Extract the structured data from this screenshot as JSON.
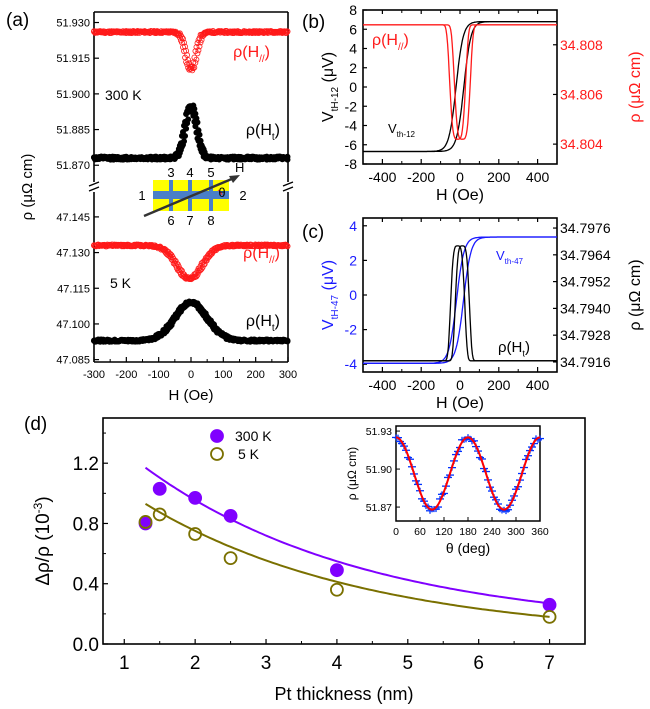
{
  "colors": {
    "black": "#000000",
    "red": "#ff1a1a",
    "blue": "#1a1aff",
    "purple": "#8000ff",
    "olive": "#7a7000",
    "inset_blue": "#0033ff",
    "inset_red": "#ff0000",
    "yellow": "#ffff00",
    "bar_blue": "#4a7fc8",
    "theta_red": "#ff3333"
  },
  "chart_data": [
    {
      "id": "a",
      "panel_label": "(a)",
      "type": "scatter",
      "xlabel": "H (Oe)",
      "ylabel": "ρ (μΩ cm)",
      "xlim": [
        -300,
        300
      ],
      "xticks": [
        -300,
        -200,
        -100,
        0,
        100,
        200,
        300
      ],
      "xtick_labels": [
        "-300",
        "-200",
        "-100",
        "0",
        "100",
        "200",
        "300"
      ],
      "broken_axis": true,
      "upper": {
        "ylim": [
          51.868,
          51.934
        ],
        "yticks": [
          51.87,
          51.885,
          51.9,
          51.915,
          51.93
        ],
        "ytick_labels": [
          "51.870",
          "51.885",
          "51.900",
          "51.915",
          "51.930"
        ],
        "temperature_label": "300 K",
        "series": [
          {
            "name": "ρ(H//)",
            "label_main": "ρ(H",
            "label_sub": "//",
            "label_end": ")",
            "marker": "open-circle",
            "color": "red",
            "baseline": 51.926,
            "extremum": 51.91,
            "center": 0,
            "width": 22
          },
          {
            "name": "ρ(Ht)",
            "label_main": "ρ(H",
            "label_sub": "t",
            "label_end": ")",
            "marker": "filled-circle",
            "color": "black",
            "baseline": 51.873,
            "extremum": 51.895,
            "center": 0,
            "width": 25
          }
        ]
      },
      "lower": {
        "ylim": [
          47.084,
          47.15
        ],
        "yticks": [
          47.085,
          47.1,
          47.115,
          47.13,
          47.145
        ],
        "ytick_labels": [
          "47.085",
          "47.100",
          "47.115",
          "47.130",
          "47.145"
        ],
        "temperature_label": "5 K",
        "series": [
          {
            "name": "ρ(H//)",
            "label_main": "ρ(H",
            "label_sub": "//",
            "label_end": ")",
            "marker": "open-circle",
            "color": "red",
            "baseline": 47.133,
            "extremum": 47.119,
            "center": -5,
            "width": 55
          },
          {
            "name": "ρ(Ht)",
            "label_main": "ρ(H",
            "label_sub": "t",
            "label_end": ")",
            "marker": "filled-circle",
            "color": "black",
            "baseline": 47.093,
            "extremum": 47.109,
            "center": 0,
            "width": 70
          }
        ]
      },
      "device_schematic": {
        "contacts_top": [
          "3",
          "4",
          "5"
        ],
        "contacts_bottom": [
          "6",
          "7",
          "8"
        ],
        "contact_left": "1",
        "contact_right": "2",
        "field_label": "H",
        "angle_label": "θ"
      }
    },
    {
      "id": "b",
      "panel_label": "(b)",
      "type": "line",
      "xlabel": "H (Oe)",
      "ylabel_main": "V",
      "ylabel_sub": "tH-12",
      "ylabel_end": " (μV)",
      "y2label": "ρ (μΩ cm)",
      "xlim": [
        -500,
        500
      ],
      "xticks": [
        -400,
        -200,
        0,
        200,
        400
      ],
      "xtick_labels": [
        "-400",
        "-200",
        "0",
        "200",
        "400"
      ],
      "ylim": [
        -8,
        8
      ],
      "yticks": [
        -8,
        -6,
        -4,
        -2,
        0,
        2,
        4,
        6,
        8
      ],
      "ytick_labels": [
        "-8",
        "-6",
        "-4",
        "-2",
        "0",
        "2",
        "4",
        "6",
        "8"
      ],
      "y2lim": [
        34.8032,
        34.8094
      ],
      "y2ticks": [
        34.804,
        34.806,
        34.808
      ],
      "y2tick_labels": [
        "34.804",
        "34.806",
        "34.808"
      ],
      "series": [
        {
          "name": "Vth-12",
          "label_main": "V",
          "label_sub": "th-12",
          "color": "black",
          "axis": "left",
          "shape": "step",
          "low": -6.7,
          "high": 6.8,
          "coercive": 20,
          "switch_width": 80
        },
        {
          "name": "ρ(H//)",
          "label_main": "ρ(H",
          "label_sub": "//",
          "label_end": ")",
          "color": "red",
          "axis": "right",
          "shape": "dip",
          "baseline": 34.8088,
          "extremum": 34.8042,
          "coercive": 12,
          "width": 45
        }
      ]
    },
    {
      "id": "c",
      "panel_label": "(c)",
      "type": "line",
      "xlabel": "H (Oe)",
      "ylabel_main": "V",
      "ylabel_sub": "tH-47",
      "ylabel_end": " (μV)",
      "y2label": "ρ (μΩ cm)",
      "xlim": [
        -500,
        500
      ],
      "xticks": [
        -400,
        -200,
        0,
        200,
        400
      ],
      "xtick_labels": [
        "-400",
        "-200",
        "0",
        "200",
        "400"
      ],
      "ylim": [
        -4.45,
        4.45
      ],
      "yticks": [
        -4,
        -2,
        0,
        2,
        4
      ],
      "ytick_labels": [
        "-4",
        "-2",
        "0",
        "2",
        "4"
      ],
      "y2lim": [
        34.79115,
        34.79805
      ],
      "y2ticks": [
        34.7916,
        34.7928,
        34.794,
        34.7952,
        34.7964,
        34.7976
      ],
      "y2tick_labels": [
        "34.7916",
        "34.7928",
        "34.7940",
        "34.7952",
        "34.7964",
        "34.7976"
      ],
      "series": [
        {
          "name": "Vth-47",
          "label_main": "V",
          "label_sub": "th-47",
          "color": "blue",
          "axis": "left",
          "shape": "step",
          "low": -3.95,
          "high": 3.35,
          "coercive": 18,
          "switch_width": 85
        },
        {
          "name": "ρ(Ht)",
          "label_main": "ρ(H",
          "label_sub": "t",
          "label_end": ")",
          "color": "black",
          "axis": "right",
          "shape": "peak",
          "baseline": 34.79165,
          "extremum": 34.7968,
          "coercive": 12,
          "width": 40
        }
      ]
    },
    {
      "id": "d",
      "panel_label": "(d)",
      "type": "scatter",
      "xlabel": "Pt thickness (nm)",
      "ylabel_main": "Δρ/ρ (10",
      "ylabel_sup": "-3",
      "ylabel_end": ")",
      "xlim": [
        0.7,
        7.5
      ],
      "xticks": [
        1,
        2,
        3,
        4,
        5,
        6,
        7
      ],
      "xtick_labels": [
        "1",
        "2",
        "3",
        "4",
        "5",
        "6",
        "7"
      ],
      "ylim": [
        0.0,
        1.5
      ],
      "yticks": [
        0.0,
        0.4,
        0.8,
        1.2
      ],
      "ytick_labels": [
        "0.0",
        "0.4",
        "0.8",
        "1.2"
      ],
      "legend_position": "top-left",
      "series": [
        {
          "name": "300 K",
          "marker": "filled-circle",
          "color": "purple",
          "x": [
            1.3,
            1.5,
            2.0,
            2.5,
            4.0,
            7.0
          ],
          "y": [
            0.8,
            1.03,
            0.97,
            0.85,
            0.49,
            0.26
          ],
          "fit": {
            "x0": 1.3,
            "x1": 7.0,
            "y_start": 1.17,
            "y_end": 0.27
          }
        },
        {
          "name": "5 K",
          "marker": "open-circle",
          "color": "olive",
          "x": [
            1.3,
            1.5,
            2.0,
            2.5,
            4.0,
            7.0
          ],
          "y": [
            0.81,
            0.86,
            0.73,
            0.57,
            0.36,
            0.18
          ],
          "fit": {
            "x0": 1.3,
            "x1": 7.0,
            "y_start": 0.93,
            "y_end": 0.18
          }
        }
      ],
      "inset": {
        "type": "line",
        "xlabel": "θ (deg)",
        "ylabel": "ρ (μΩ cm)",
        "xlim": [
          0,
          360
        ],
        "xticks": [
          0,
          60,
          120,
          180,
          240,
          300,
          360
        ],
        "xtick_labels": [
          "0",
          "60",
          "120",
          "180",
          "240",
          "300",
          "360"
        ],
        "ylim": [
          51.859,
          51.934
        ],
        "yticks": [
          51.87,
          51.9,
          51.93
        ],
        "ytick_labels": [
          "51.87",
          "51.90",
          "51.93"
        ],
        "series": [
          {
            "name": "data",
            "marker": "plus",
            "color": "inset_blue"
          },
          {
            "name": "fit",
            "color": "inset_red",
            "mean": 51.8965,
            "amplitude": 0.0285,
            "form": "cos(2θ)"
          }
        ]
      }
    }
  ]
}
